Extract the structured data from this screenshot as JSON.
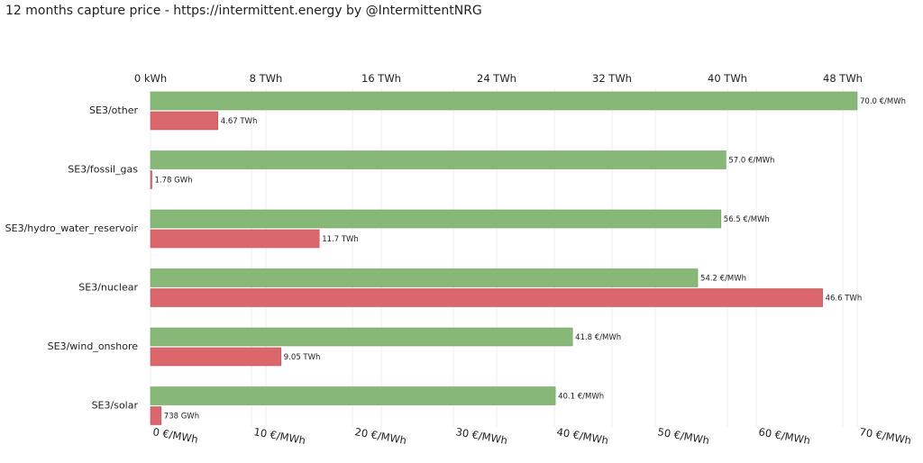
{
  "title": "12 months capture price - https://intermittent.energy by @IntermittentNRG",
  "chart_data": {
    "type": "bar",
    "orientation": "horizontal",
    "categories": [
      "SE3/other",
      "SE3/fossil_gas",
      "SE3/hydro_water_reservoir",
      "SE3/nuclear",
      "SE3/wind_onshore",
      "SE3/solar"
    ],
    "series": [
      {
        "unit": "€/MWh",
        "axis": "bottom",
        "color": "#88b878",
        "values": [
          70.0,
          57.0,
          56.5,
          54.2,
          41.8,
          40.1
        ],
        "labels": [
          "70.0 €/MWh",
          "57.0 €/MWh",
          "56.5 €/MWh",
          "54.2 €/MWh",
          "41.8 €/MWh",
          "40.1 €/MWh"
        ]
      },
      {
        "unit": "TWh",
        "axis": "top",
        "color": "#d9676c",
        "values": [
          4.67,
          0.00178,
          11.7,
          46.6,
          9.05,
          0.738
        ],
        "labels": [
          "4.67 TWh",
          "1.78 GWh",
          "11.7 TWh",
          "46.6 TWh",
          "9.05 TWh",
          "738 GWh"
        ]
      }
    ],
    "top_axis": {
      "ticks": [
        0,
        8,
        16,
        24,
        32,
        40,
        48
      ],
      "tick_labels": [
        "0 kWh",
        "8 TWh",
        "16 TWh",
        "24 TWh",
        "32 TWh",
        "40 TWh",
        "48 TWh"
      ],
      "range": [
        0,
        49
      ]
    },
    "bottom_axis": {
      "ticks": [
        0,
        10,
        20,
        30,
        40,
        50,
        60,
        70
      ],
      "tick_labels": [
        "0 €/MWh",
        "10 €/MWh",
        "20 €/MWh",
        "30 €/MWh",
        "40 €/MWh",
        "50 €/MWh",
        "60 €/MWh",
        "70 €/MWh"
      ],
      "range": [
        0,
        70
      ]
    },
    "grid": true
  }
}
